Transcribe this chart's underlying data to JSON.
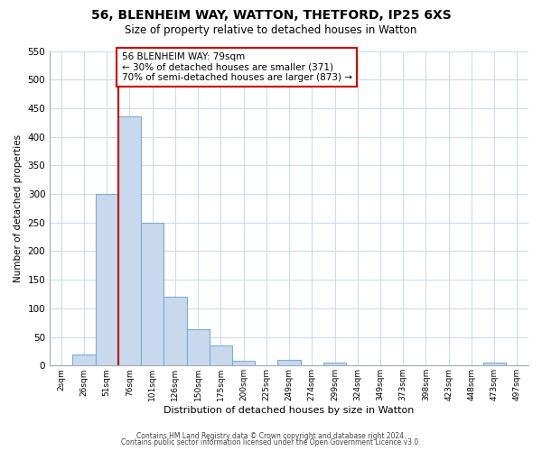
{
  "title": "56, BLENHEIM WAY, WATTON, THETFORD, IP25 6XS",
  "subtitle": "Size of property relative to detached houses in Watton",
  "xlabel": "Distribution of detached houses by size in Watton",
  "ylabel": "Number of detached properties",
  "bar_labels": [
    "2sqm",
    "26sqm",
    "51sqm",
    "76sqm",
    "101sqm",
    "126sqm",
    "150sqm",
    "175sqm",
    "200sqm",
    "225sqm",
    "249sqm",
    "274sqm",
    "299sqm",
    "324sqm",
    "349sqm",
    "373sqm",
    "398sqm",
    "423sqm",
    "448sqm",
    "473sqm",
    "497sqm"
  ],
  "bar_values": [
    0,
    20,
    300,
    435,
    250,
    120,
    63,
    35,
    8,
    0,
    10,
    0,
    5,
    0,
    0,
    0,
    0,
    0,
    0,
    5,
    0
  ],
  "bar_color": "#c8d8ed",
  "bar_edge_color": "#7aaed4",
  "property_line_color": "#cc0000",
  "annotation_title": "56 BLENHEIM WAY: 79sqm",
  "annotation_line1": "← 30% of detached houses are smaller (371)",
  "annotation_line2": "70% of semi-detached houses are larger (873) →",
  "annotation_box_color": "#cc0000",
  "ylim": [
    0,
    550
  ],
  "yticks": [
    0,
    50,
    100,
    150,
    200,
    250,
    300,
    350,
    400,
    450,
    500,
    550
  ],
  "footer1": "Contains HM Land Registry data © Crown copyright and database right 2024.",
  "footer2": "Contains public sector information licensed under the Open Government Licence v3.0.",
  "background_color": "#ffffff",
  "grid_color": "#ccdded"
}
